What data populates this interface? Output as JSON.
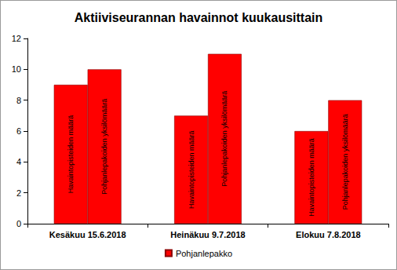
{
  "chart_data": {
    "type": "bar",
    "title": "Aktiiviseurannan havainnot kuukausittain",
    "categories": [
      "Kesäkuu 15.6.2018",
      "Heinäkuu 9.7.2018",
      "Elokuu 7.8.2018"
    ],
    "series": [
      {
        "name": "Pohjanlepakko",
        "label": "Havaintopisteiden määrä",
        "color": "#ff0000",
        "values": [
          9,
          7,
          6
        ]
      },
      {
        "name": "Pohjanlepakko",
        "label": "Pohjanlepakoiden yksilömäärä",
        "color": "#ff0000",
        "values": [
          10,
          11,
          8
        ]
      }
    ],
    "ylim": [
      0,
      12
    ],
    "yticks": [
      0,
      2,
      4,
      6,
      8,
      10,
      12
    ],
    "grid": false,
    "legend": "bottom"
  }
}
